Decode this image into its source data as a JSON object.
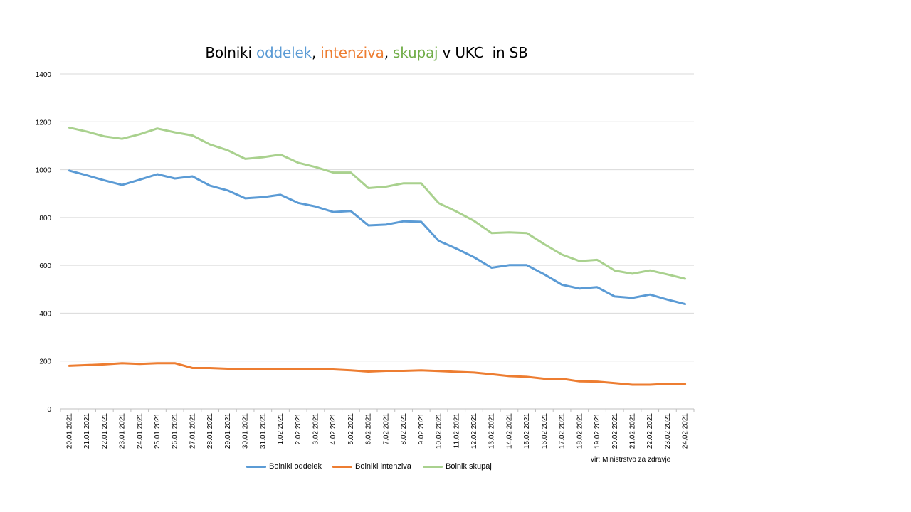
{
  "chart_data": {
    "type": "line",
    "title_parts": [
      {
        "text": "Bolniki ",
        "color": "#000000"
      },
      {
        "text": "oddelek",
        "color": "#5b9bd5"
      },
      {
        "text": ", ",
        "color": "#000000"
      },
      {
        "text": "intenziva",
        "color": "#ed7d31"
      },
      {
        "text": ", ",
        "color": "#000000"
      },
      {
        "text": "skupaj",
        "color": "#70ad47"
      },
      {
        "text": " v UKC  in SB",
        "color": "#000000"
      }
    ],
    "categories": [
      "20.01.2021",
      "21.01.2021",
      "22.01.2021",
      "23.01.2021",
      "24.01.2021",
      "25.01.2021",
      "26.01.2021",
      "27.01.2021",
      "28.01.2021",
      "29.01.2021",
      "30.01.2021",
      "31.01.2021",
      "1.02.2021",
      "2.02.2021",
      "3.02.2021",
      "4.02.2021",
      "5.02.2021",
      "6.02.2021",
      "7.02.2021",
      "8.02.2021",
      "9.02.2021",
      "10.02.2021",
      "11.02.2021",
      "12.02.2021",
      "13.02.2021",
      "14.02.2021",
      "15.02.2021",
      "16.02.2021",
      "17.02.2021",
      "18.02.2021",
      "19.02.2021",
      "20.02.2021",
      "21.02.2021",
      "22.02.2021",
      "23.02.2021",
      "24.02.2021"
    ],
    "series": [
      {
        "name": "Bolniki oddelek",
        "color": "#5b9bd5",
        "values": [
          996,
          976,
          955,
          936,
          958,
          981,
          963,
          972,
          933,
          913,
          880,
          885,
          895,
          861,
          846,
          823,
          827,
          767,
          770,
          784,
          782,
          702,
          670,
          634,
          590,
          601,
          601,
          562,
          519,
          503,
          509,
          470,
          464,
          478,
          457,
          438
        ]
      },
      {
        "name": "Bolniki intenziva",
        "color": "#ed7d31",
        "values": [
          180,
          183,
          186,
          191,
          188,
          191,
          191,
          171,
          171,
          168,
          165,
          165,
          168,
          168,
          165,
          165,
          161,
          156,
          159,
          159,
          161,
          158,
          155,
          152,
          145,
          137,
          134,
          126,
          126,
          115,
          114,
          108,
          101,
          101,
          105,
          104
        ]
      },
      {
        "name": "Bolnik skupaj",
        "color": "#a9d18e",
        "values": [
          1176,
          1159,
          1139,
          1129,
          1148,
          1172,
          1156,
          1143,
          1105,
          1081,
          1045,
          1052,
          1063,
          1029,
          1011,
          988,
          988,
          923,
          929,
          943,
          943,
          860,
          825,
          786,
          735,
          738,
          735,
          688,
          645,
          618,
          623,
          578,
          565,
          579,
          562,
          544
        ]
      }
    ],
    "ylim": [
      0,
      1400
    ],
    "yticks": [
      0,
      200,
      400,
      600,
      800,
      1000,
      1200,
      1400
    ],
    "grid": true,
    "legend_position": "bottom",
    "source_note": "vir: Ministrstvo za zdravje"
  }
}
